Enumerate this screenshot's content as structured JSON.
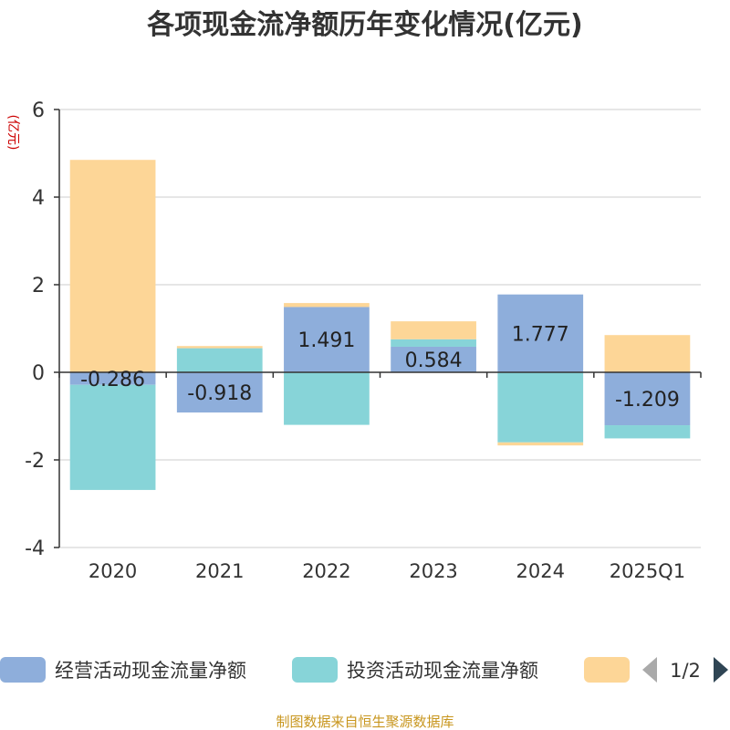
{
  "chart_data": {
    "type": "bar",
    "stacked": true,
    "title": "各项现金流净额历年变化情况(亿元)",
    "ylabel": "(亿元)",
    "ylim": [
      -4,
      6
    ],
    "yticks": [
      6,
      4,
      2,
      0,
      -2,
      -4
    ],
    "grid": true,
    "categories": [
      "2020",
      "2021",
      "2022",
      "2023",
      "2024",
      "2025Q1"
    ],
    "series": [
      {
        "name": "经营活动现金流量净额",
        "color": "#8eaedb",
        "values": [
          -0.286,
          -0.918,
          1.491,
          0.584,
          1.777,
          -1.209
        ]
      },
      {
        "name": "投资活动现金流量净额",
        "color": "#87d4d8",
        "values": [
          -2.4,
          0.55,
          -1.2,
          0.17,
          -1.6,
          -0.3
        ]
      },
      {
        "name": "",
        "color": "#fdd697",
        "values": [
          4.85,
          0.05,
          0.09,
          0.41,
          -0.07,
          0.85
        ]
      }
    ],
    "data_labels": [
      "-0.286",
      "-0.918",
      "1.491",
      "0.584",
      "1.777",
      "-1.209"
    ],
    "legend": {
      "placement": "bottom",
      "page": "1/2"
    }
  },
  "source": "制图数据来自恒生聚源数据库"
}
